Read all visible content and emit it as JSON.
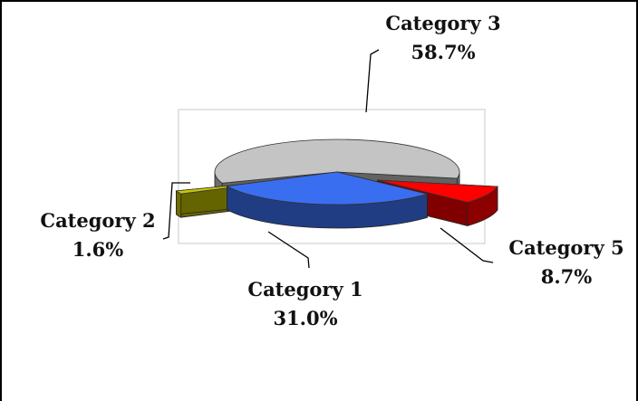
{
  "chart_data": {
    "type": "pie",
    "title": "",
    "categories": [
      "Category 1",
      "Category 2",
      "Category 3",
      "Category 5"
    ],
    "values": [
      31.0,
      1.6,
      58.7,
      8.7
    ],
    "value_labels": [
      "31.0%",
      "1.6%",
      "58.7%",
      "8.7%"
    ],
    "colors": {
      "Category 1": "#3a6ef0",
      "Category 2": "#c8c800",
      "Category 3": "#c4c4c4",
      "Category 5": "#ff0000"
    },
    "exploded": [
      "Category 2",
      "Category 5"
    ],
    "style": "3d",
    "legend": "none"
  }
}
